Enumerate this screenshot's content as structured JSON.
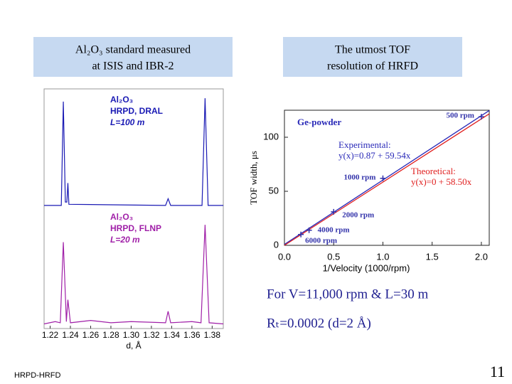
{
  "header": {
    "left": [
      "Al₂O₃ standard measured",
      "at ISIS and IBR-2"
    ],
    "right": [
      "The utmost TOF",
      "resolution of HRFD"
    ]
  },
  "chart_data": [
    {
      "type": "line",
      "xlabel": "d, Å",
      "xlim": [
        1.214,
        1.391
      ],
      "xticks": [
        1.22,
        1.24,
        1.26,
        1.28,
        {
          "value": 1.3,
          "label": "1.30"
        },
        1.32,
        1.34,
        1.36,
        1.38
      ],
      "panels": [
        {
          "labels": [
            "Al₂O₃",
            "HRPD, DRAL",
            "L=100 m"
          ],
          "color": "#1a1ab4",
          "ylim": [
            0,
            1
          ],
          "x": [
            1.214,
            1.231,
            1.233,
            1.235,
            1.2365,
            1.2375,
            1.2385,
            1.334,
            1.3365,
            1.339,
            1.37,
            1.373,
            1.376,
            1.391
          ],
          "values": [
            0.02,
            0.02,
            0.95,
            0.05,
            0.05,
            0.22,
            0.03,
            0.02,
            0.08,
            0.02,
            0.02,
            0.98,
            0.02,
            0.02
          ]
        },
        {
          "labels": [
            "Al₂O₃",
            "HRPD, FLNP",
            "L=20 m"
          ],
          "color": "#a020a8",
          "ylim": [
            0,
            1
          ],
          "x": [
            1.214,
            1.225,
            1.23,
            1.233,
            1.236,
            1.2375,
            1.24,
            1.26,
            1.28,
            1.3,
            1.334,
            1.3365,
            1.339,
            1.36,
            1.369,
            1.373,
            1.377,
            1.391
          ],
          "values": [
            0.04,
            0.06,
            0.05,
            0.75,
            0.06,
            0.25,
            0.05,
            0.07,
            0.05,
            0.06,
            0.05,
            0.15,
            0.05,
            0.06,
            0.05,
            0.9,
            0.05,
            0.04
          ]
        }
      ]
    },
    {
      "type": "scatter",
      "title": "Ge-powder",
      "xlabel": "1/Velocity (1000/rpm)",
      "ylabel": "TOF width, μs",
      "xlim": [
        0,
        2.08
      ],
      "ylim": [
        0,
        125
      ],
      "xticks": [
        {
          "value": 0,
          "label": "0.0"
        },
        0.5,
        {
          "value": 1,
          "label": "1.0"
        },
        1.5,
        {
          "value": 2,
          "label": "2.0"
        }
      ],
      "yticks": [
        0,
        50,
        100
      ],
      "series": [
        {
          "color": "#3333aa",
          "x": [
            2.0,
            1.0,
            0.5,
            0.25,
            0.167
          ],
          "values": [
            119,
            62,
            31,
            14,
            10
          ],
          "point_labels": [
            "500 rpm",
            "1000 rpm",
            "2000 rpm",
            "4000 rpm",
            "6000 rpm"
          ]
        }
      ],
      "fits": [
        {
          "name": "Experimental:",
          "equation": "y(x)=0.87 + 59.54x",
          "intercept": 0.87,
          "slope": 59.54,
          "color": "#2a2ab8"
        },
        {
          "name": "Theoretical:",
          "equation": "y(x)=0 + 58.50x",
          "intercept": 0,
          "slope": 58.5,
          "color": "#e02020"
        }
      ]
    }
  ],
  "notes": [
    "For V=11,000 rpm & L=30 m",
    "Rₜ=0.0002 (d=2 Å)"
  ],
  "footer": "HRPD-HRFD",
  "page_number": "11"
}
